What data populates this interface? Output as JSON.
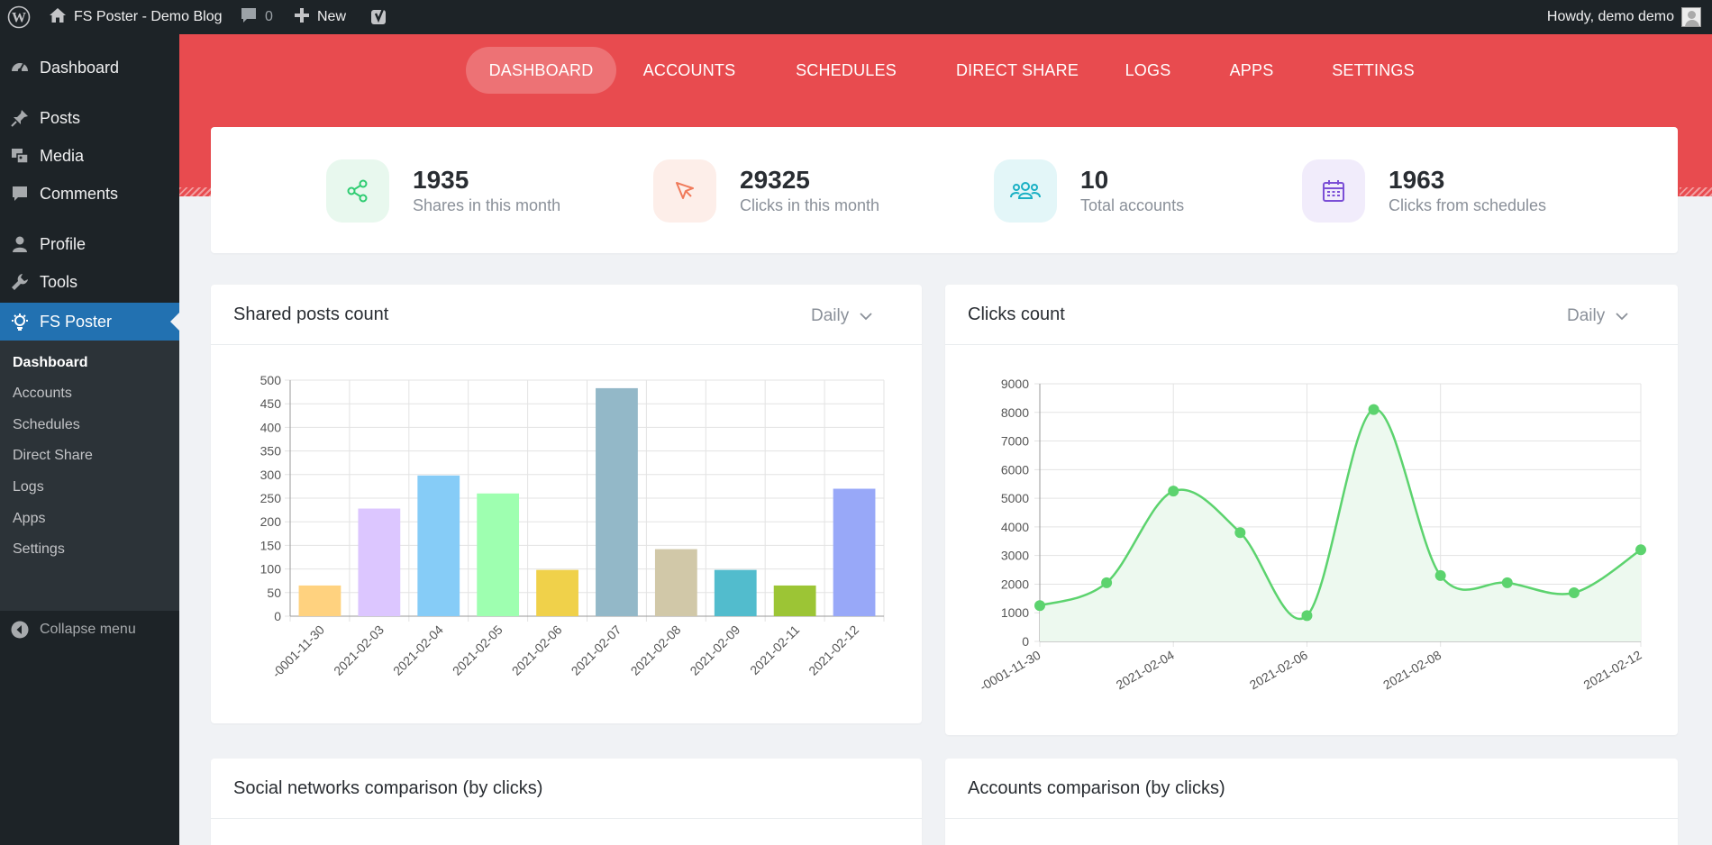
{
  "adminbar": {
    "site_name": "FS Poster - Demo Blog",
    "comments_count": "0",
    "new_label": "New",
    "greeting": "Howdy, demo demo"
  },
  "sidebar": {
    "items": [
      {
        "label": "Dashboard",
        "icon": "dashboard-icon"
      },
      {
        "label": "Posts",
        "icon": "pin-icon"
      },
      {
        "label": "Media",
        "icon": "media-icon"
      },
      {
        "label": "Comments",
        "icon": "comment-icon"
      },
      {
        "label": "Profile",
        "icon": "user-icon"
      },
      {
        "label": "Tools",
        "icon": "wrench-icon"
      },
      {
        "label": "FS Poster",
        "icon": "fs-poster-icon"
      }
    ],
    "submenu": [
      "Dashboard",
      "Accounts",
      "Schedules",
      "Direct Share",
      "Logs",
      "Apps",
      "Settings"
    ],
    "collapse_label": "Collapse menu"
  },
  "nav": {
    "tabs": [
      "DASHBOARD",
      "ACCOUNTS",
      "SCHEDULES",
      "DIRECT SHARE",
      "LOGS",
      "APPS",
      "SETTINGS"
    ]
  },
  "stats": [
    {
      "value": "1935",
      "label": "Shares in this month",
      "icon": "share-icon",
      "color": "#2ecc71",
      "bg": "#e8f8ee"
    },
    {
      "value": "29325",
      "label": "Clicks in this month",
      "icon": "cursor-icon",
      "color": "#f07a5a",
      "bg": "#fdeee9"
    },
    {
      "value": "10",
      "label": "Total accounts",
      "icon": "users-icon",
      "color": "#1ab0c4",
      "bg": "#e3f6f8"
    },
    {
      "value": "1963",
      "label": "Clicks from schedules",
      "icon": "calendar-icon",
      "color": "#7b4fd6",
      "bg": "#f1ecfb"
    }
  ],
  "cards": {
    "shared": {
      "title": "Shared posts count",
      "period": "Daily"
    },
    "clicks": {
      "title": "Clicks count",
      "period": "Daily"
    },
    "social": {
      "title": "Social networks comparison (by clicks)"
    },
    "accounts": {
      "title": "Accounts comparison (by clicks)"
    }
  },
  "chart_data": [
    {
      "type": "bar",
      "title": "Shared posts count",
      "categories": [
        "-0001-11-30",
        "2021-02-03",
        "2021-02-04",
        "2021-02-05",
        "2021-02-06",
        "2021-02-07",
        "2021-02-08",
        "2021-02-09",
        "2021-02-11",
        "2021-02-12"
      ],
      "values": [
        65,
        228,
        298,
        260,
        98,
        483,
        142,
        98,
        65,
        270
      ],
      "colors": [
        "#ffd27f",
        "#dcc6ff",
        "#86ccf7",
        "#9effb0",
        "#f0d14a",
        "#93b8c8",
        "#d1c8a8",
        "#52bccd",
        "#9cc535",
        "#98a8f8"
      ],
      "ylim": [
        0,
        500
      ],
      "yticks": [
        0,
        50,
        100,
        150,
        200,
        250,
        300,
        350,
        400,
        450,
        500
      ],
      "grid": true
    },
    {
      "type": "line",
      "title": "Clicks count",
      "x": [
        "-0001-11-30",
        "2021-02-03",
        "2021-02-04",
        "2021-02-05",
        "2021-02-06",
        "2021-02-07",
        "2021-02-08",
        "2021-02-09",
        "2021-02-11",
        "2021-02-12"
      ],
      "x_tick_labels": [
        "-0001-11-30",
        "2021-02-04",
        "2021-02-06",
        "2021-02-08",
        "2021-02-12"
      ],
      "values": [
        1250,
        2050,
        5250,
        3800,
        900,
        8100,
        2300,
        2050,
        1700,
        3200
      ],
      "ylim": [
        0,
        9000
      ],
      "yticks": [
        0,
        1000,
        2000,
        3000,
        4000,
        5000,
        6000,
        7000,
        8000,
        9000
      ],
      "line_color": "#5cd36e",
      "fill_color": "#edf9ef",
      "grid": true
    }
  ]
}
